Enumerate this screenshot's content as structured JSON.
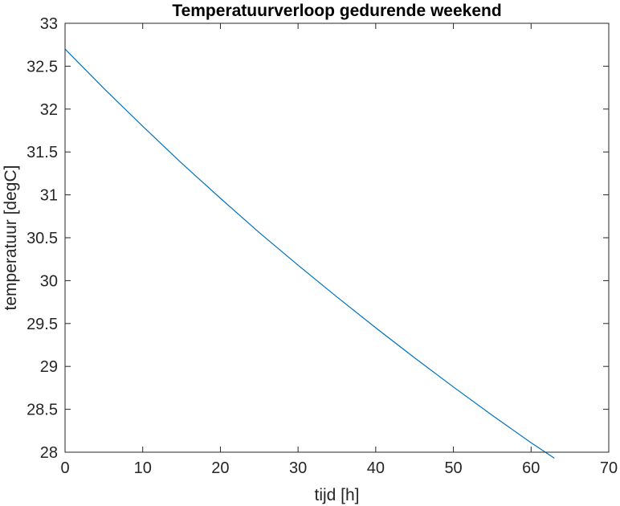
{
  "chart_data": {
    "type": "line",
    "title": "Temperatuurverloop gedurende weekend",
    "xlabel": "tijd [h]",
    "ylabel": "temperatuur [degC]",
    "xlim": [
      0,
      70
    ],
    "ylim": [
      28,
      33
    ],
    "xticks": [
      0,
      10,
      20,
      30,
      40,
      50,
      60,
      70
    ],
    "xtick_labels": [
      "0",
      "10",
      "20",
      "30",
      "40",
      "50",
      "60",
      "70"
    ],
    "yticks": [
      28,
      28.5,
      29,
      29.5,
      30,
      30.5,
      31,
      31.5,
      32,
      32.5,
      33
    ],
    "ytick_labels": [
      "28",
      "28.5",
      "29",
      "29.5",
      "30",
      "30.5",
      "31",
      "31.5",
      "32",
      "32.5",
      "33"
    ],
    "grid": false,
    "legend": "none",
    "series": [
      {
        "color": "#0072BD",
        "x": [
          0,
          5,
          10,
          15,
          20,
          25,
          30,
          35,
          40,
          45,
          50,
          55,
          60,
          63
        ],
        "y": [
          32.7,
          32.24,
          31.8,
          31.37,
          30.96,
          30.56,
          30.18,
          29.81,
          29.45,
          29.1,
          28.76,
          28.43,
          28.11,
          27.93
        ]
      }
    ]
  }
}
